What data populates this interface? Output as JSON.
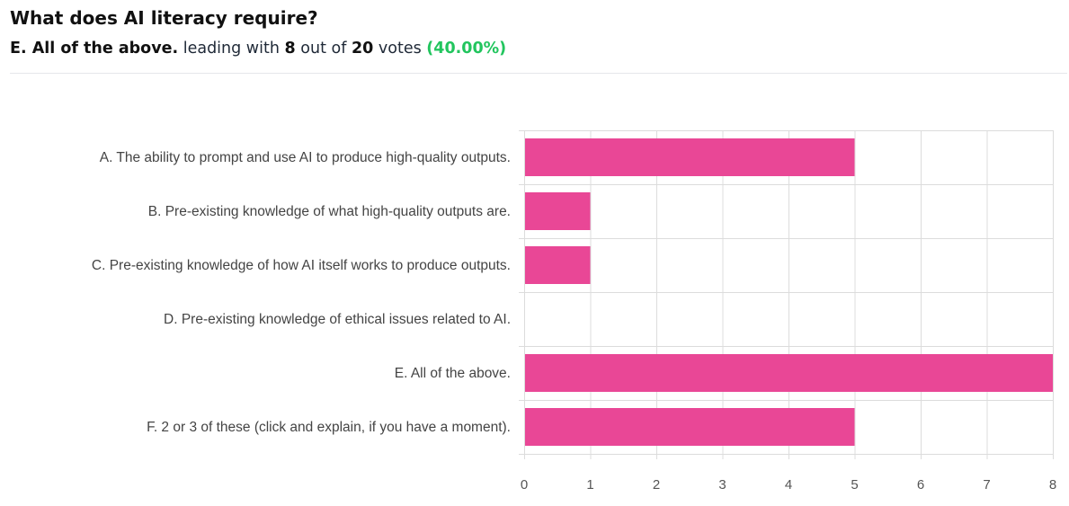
{
  "poll": {
    "question": "What does AI literacy require?",
    "leader": "E. All of the above.",
    "leading_with_text": "leading with",
    "leader_votes": "8",
    "out_of_text": "out of",
    "total_votes": "20",
    "votes_text": "votes",
    "leader_percent": "(40.00%)"
  },
  "colors": {
    "bar": "#e94796",
    "grid": "#dcdcdc",
    "accent_green": "#22c55e"
  },
  "chart_data": {
    "type": "bar",
    "orientation": "horizontal",
    "categories": [
      "A. The ability to prompt and use AI to produce high-quality outputs.",
      "B. Pre-existing knowledge of what high-quality outputs are.",
      "C. Pre-existing knowledge of how AI itself works to produce outputs.",
      "D. Pre-existing knowledge of ethical issues related to AI.",
      "E. All of the above.",
      "F. 2 or 3 of these (click and explain, if you have a moment)."
    ],
    "values": [
      5,
      1,
      1,
      0,
      8,
      5
    ],
    "xlim": [
      0,
      8
    ],
    "xticks": [
      "0",
      "1",
      "2",
      "3",
      "4",
      "5",
      "6",
      "7",
      "8"
    ],
    "grid": true,
    "legend": "none"
  }
}
